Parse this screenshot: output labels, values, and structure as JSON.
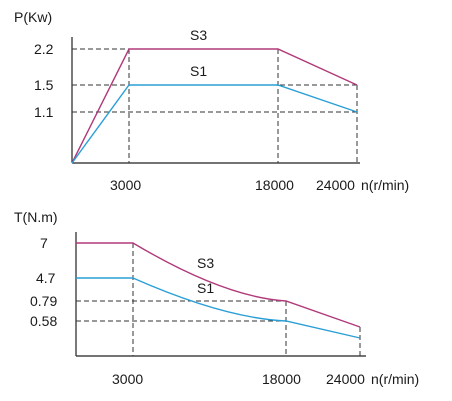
{
  "chart_data": [
    {
      "type": "line",
      "ylabel": "P(Kw)",
      "xlabel": "n(r/min)",
      "x_ticks": [
        "3000",
        "18000",
        "24000"
      ],
      "y_ticks": [
        "2.2",
        "1.5",
        "1.1"
      ],
      "x": [
        0,
        3000,
        18000,
        24000
      ],
      "series": [
        {
          "name": "S3",
          "values": [
            0,
            2.2,
            2.2,
            1.5
          ],
          "color": "#b03a7a"
        },
        {
          "name": "S1",
          "values": [
            0,
            1.5,
            1.5,
            1.1
          ],
          "color": "#2a9fd6"
        }
      ]
    },
    {
      "type": "line",
      "ylabel": "T(N.m)",
      "xlabel": "n(r/min)",
      "x_ticks": [
        "3000",
        "18000",
        "24000"
      ],
      "y_ticks": [
        "7",
        "4.7",
        "0.79",
        "0.58"
      ],
      "x": [
        0,
        3000,
        18000,
        24000
      ],
      "series": [
        {
          "name": "S3",
          "values": [
            7,
            7,
            0.79,
            0.6
          ],
          "color": "#b03a7a"
        },
        {
          "name": "S1",
          "values": [
            4.7,
            4.7,
            0.58,
            0.45
          ],
          "color": "#2a9fd6"
        }
      ]
    }
  ]
}
